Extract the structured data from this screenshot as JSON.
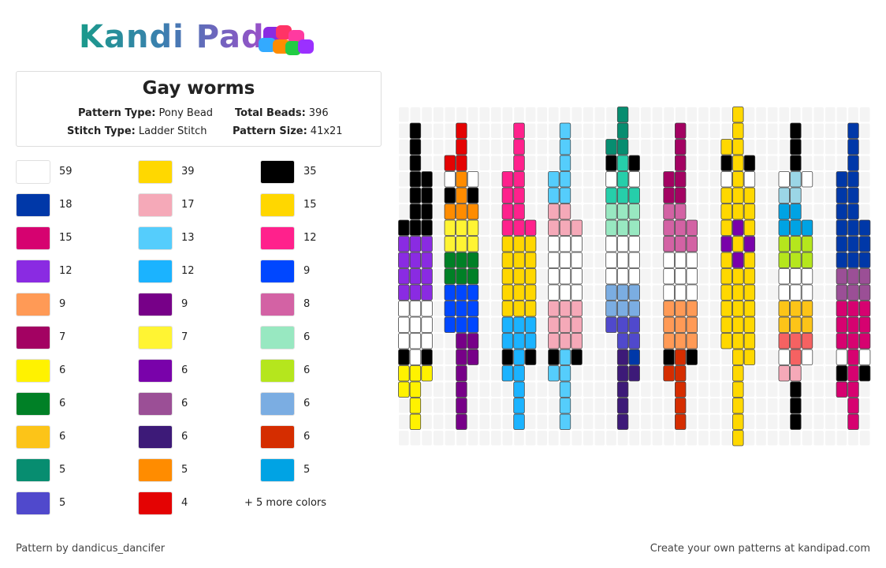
{
  "header": {
    "logo": "Kandi Pad"
  },
  "pattern": {
    "title": "Gay worms",
    "details": [
      {
        "label": "Pattern Type:",
        "value": "Pony Bead"
      },
      {
        "label": "Total Beads:",
        "value": 396
      },
      {
        "label": "Stitch Type:",
        "value": "Ladder Stitch"
      },
      {
        "label": "Pattern Size:",
        "value": "41x21"
      }
    ]
  },
  "palette": [
    {
      "color": "#ffffff",
      "count": 59
    },
    {
      "color": "#ffd800",
      "count": 39
    },
    {
      "color": "#000000",
      "count": 35
    },
    {
      "color": "#0038a8",
      "count": 18
    },
    {
      "color": "#f5a9b8",
      "count": 17
    },
    {
      "color": "#ffd700",
      "count": 15
    },
    {
      "color": "#d60270",
      "count": 15
    },
    {
      "color": "#55cdfc",
      "count": 13
    },
    {
      "color": "#ff218c",
      "count": 12
    },
    {
      "color": "#8a2be2",
      "count": 12
    },
    {
      "color": "#1bb3ff",
      "count": 12
    },
    {
      "color": "#0047ff",
      "count": 9
    },
    {
      "color": "#ff9a56",
      "count": 9
    },
    {
      "color": "#770088",
      "count": 9
    },
    {
      "color": "#d362a4",
      "count": 8
    },
    {
      "color": "#a30262",
      "count": 7
    },
    {
      "color": "#fff433",
      "count": 7
    },
    {
      "color": "#98e8c1",
      "count": 6
    },
    {
      "color": "#fff200",
      "count": 6
    },
    {
      "color": "#7902aa",
      "count": 6
    },
    {
      "color": "#b5e61d",
      "count": 6
    },
    {
      "color": "#008026",
      "count": 6
    },
    {
      "color": "#9b4f96",
      "count": 6
    },
    {
      "color": "#7bade2",
      "count": 6
    },
    {
      "color": "#fcc418",
      "count": 6
    },
    {
      "color": "#3d1a78",
      "count": 6
    },
    {
      "color": "#d52d00",
      "count": 6
    },
    {
      "color": "#078d70",
      "count": 5
    },
    {
      "color": "#ff8c00",
      "count": 5
    },
    {
      "color": "#00a3e4",
      "count": 5
    },
    {
      "color": "#5049cc",
      "count": 5
    },
    {
      "color": "#e40303",
      "count": 4
    }
  ],
  "more_colors": "+ 5 more colors",
  "footer": {
    "author": "Pattern by dandicus_dancifer",
    "cta": "Create your own patterns at kandipad.com"
  }
}
